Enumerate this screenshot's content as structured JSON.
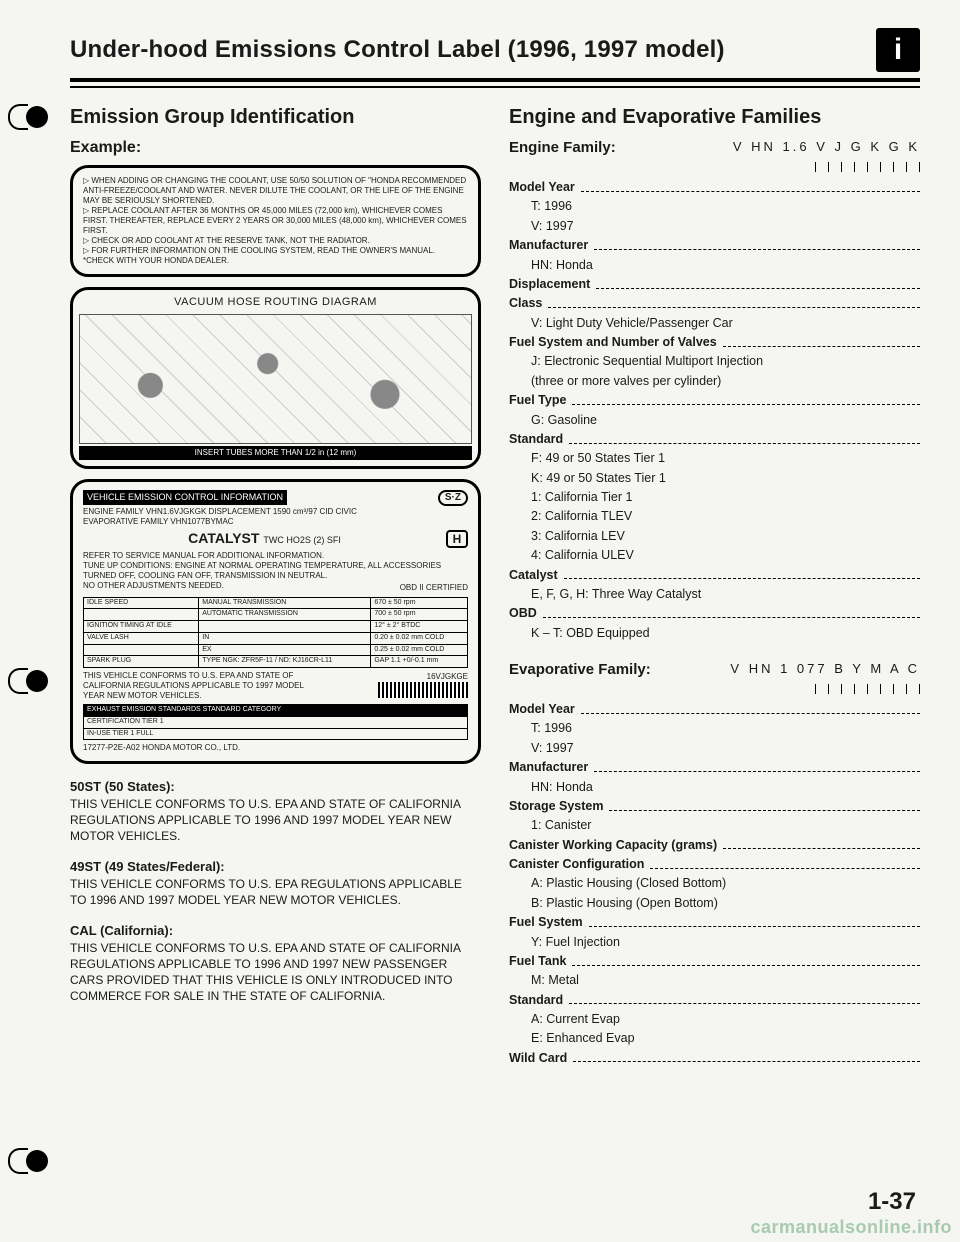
{
  "page_title": "Under-hood Emissions Control Label (1996, 1997 model)",
  "info_glyph": "i",
  "page_number": "1-37",
  "watermark": "carmanualsonline.info",
  "left": {
    "heading": "Emission Group Identification",
    "example_label": "Example:",
    "coolant_notes": [
      "▷ WHEN ADDING OR CHANGING THE COOLANT, USE 50/50 SOLUTION OF \"HONDA RECOMMENDED ANTI-FREEZE/COOLANT AND WATER. NEVER DILUTE THE COOLANT, OR THE LIFE OF THE ENGINE MAY BE SERIOUSLY SHORTENED.",
      "▷ REPLACE COOLANT AFTER 36 MONTHS OR 45,000 MILES (72,000 km), WHICHEVER COMES FIRST. THEREAFTER, REPLACE EVERY 2 YEARS OR 30,000 MILES (48,000 km), WHICHEVER COMES FIRST.",
      "▷ CHECK OR ADD COOLANT AT THE RESERVE TANK, NOT THE RADIATOR.",
      "▷ FOR FURTHER INFORMATION ON THE COOLING SYSTEM, READ THE OWNER'S MANUAL.",
      "  *CHECK WITH YOUR HONDA DEALER."
    ],
    "diagram_title": "VACUUM HOSE ROUTING DIAGRAM",
    "diagram_caption": "INSERT TUBES MORE THAN 1/2 in (12 mm)",
    "veci": {
      "header": "VEHICLE EMISSION CONTROL INFORMATION",
      "line1": "ENGINE FAMILY VHN1.6VJGKGK DISPLACEMENT 1590 cm³/97 CID   CIVIC",
      "line2": "EVAPORATIVE FAMILY VHN1077BYMAC",
      "sz": "S·Z",
      "catalyst": "CATALYST",
      "catalyst_sub": "TWC HO2S (2) SFI",
      "refer": "REFER TO SERVICE MANUAL FOR ADDITIONAL INFORMATION.",
      "tune": "TUNE UP CONDITIONS: ENGINE AT NORMAL OPERATING TEMPERATURE, ALL ACCESSORIES TURNED OFF, COOLING FAN OFF, TRANSMISSION IN NEUTRAL.",
      "no_adjust": "NO OTHER ADJUSTMENTS NEEDED.",
      "obd": "OBD II CERTIFIED",
      "h_badge": "H",
      "table_rows": [
        [
          "IDLE SPEED",
          "MANUAL TRANSMISSION",
          "670 ± 50 rpm"
        ],
        [
          "",
          "AUTOMATIC TRANSMISSION",
          "700 ± 50 rpm"
        ],
        [
          "IGNITION TIMING AT IDLE",
          "",
          "12° ± 2° BTDC"
        ],
        [
          "VALVE LASH",
          "IN",
          "0.20 ± 0.02 mm COLD"
        ],
        [
          "",
          "EX",
          "0.25 ± 0.02 mm COLD"
        ],
        [
          "SPARK PLUG",
          "TYPE   NGK: ZFR5F-11 / ND: KJ16CR-L11",
          "GAP  1.1 +0/-0.1 mm"
        ]
      ],
      "conforms": "THIS VEHICLE CONFORMS TO U.S. EPA AND STATE OF CALIFORNIA REGULATIONS APPLICABLE TO 1997 MODEL YEAR NEW MOTOR VEHICLES.",
      "engine_code": "16VJGKGE",
      "exhaust_header": "EXHAUST EMISSION STANDARDS  STANDARD CATEGORY",
      "cert": "CERTIFICATION          TIER 1",
      "inuse": "IN-USE                 TIER 1 FULL",
      "partno": "17277-P2E-A02           HONDA MOTOR CO., LTD."
    },
    "states": [
      {
        "hd": "50ST (50 States):",
        "body": "THIS VEHICLE CONFORMS TO U.S. EPA AND STATE OF CALIFORNIA REGULATIONS APPLICABLE TO 1996 AND 1997 MODEL YEAR NEW MOTOR VEHICLES."
      },
      {
        "hd": "49ST (49 States/Federal):",
        "body": "THIS VEHICLE CONFORMS TO U.S. EPA REGULATIONS APPLICABLE TO 1996 AND 1997 MODEL YEAR NEW MOTOR VEHICLES."
      },
      {
        "hd": "CAL (California):",
        "body": "THIS VEHICLE CONFORMS TO U.S. EPA AND STATE OF CALIFORNIA REGULATIONS APPLICABLE TO 1996 AND 1997 NEW PASSENGER CARS PROVIDED THAT THIS VEHICLE IS ONLY INTRODUCED INTO COMMERCE FOR SALE IN THE STATE OF CALIFORNIA."
      }
    ]
  },
  "right": {
    "heading": "Engine and Evaporative Families",
    "engine_family": {
      "label": "Engine Family:",
      "code": "V HN 1.6 V J G K G K",
      "tree": [
        {
          "k": "Model Year",
          "items": [
            "T: 1996",
            "V: 1997"
          ]
        },
        {
          "k": "Manufacturer",
          "items": [
            "HN: Honda"
          ]
        },
        {
          "k": "Displacement",
          "items": []
        },
        {
          "k": "Class",
          "items": [
            "V: Light Duty Vehicle/Passenger Car"
          ]
        },
        {
          "k": "Fuel System and Number of Valves",
          "items": [
            "J: Electronic Sequential Multiport Injection",
            "   (three or more valves per cylinder)"
          ]
        },
        {
          "k": "Fuel Type",
          "items": [
            "G: Gasoline"
          ]
        },
        {
          "k": "Standard",
          "items": [
            "F: 49 or 50 States Tier 1",
            "K: 49 or 50 States Tier 1",
            "1: California Tier 1",
            "2: California TLEV",
            "3: California LEV",
            "4: California ULEV"
          ]
        },
        {
          "k": "Catalyst",
          "items": [
            "E, F, G, H: Three Way Catalyst"
          ]
        },
        {
          "k": "OBD",
          "items": [
            "K – T: OBD Equipped"
          ]
        }
      ]
    },
    "evap_family": {
      "label": "Evaporative Family:",
      "code": "V HN 1 077 B Y M A C",
      "tree": [
        {
          "k": "Model Year",
          "items": [
            "T: 1996",
            "V: 1997"
          ]
        },
        {
          "k": "Manufacturer",
          "items": [
            "HN: Honda"
          ]
        },
        {
          "k": "Storage System",
          "items": [
            "1: Canister"
          ]
        },
        {
          "k": "Canister Working Capacity (grams)",
          "items": []
        },
        {
          "k": "Canister Configuration",
          "items": [
            "A: Plastic Housing (Closed Bottom)",
            "B: Plastic Housing (Open Bottom)"
          ]
        },
        {
          "k": "Fuel System",
          "items": [
            "Y: Fuel Injection"
          ]
        },
        {
          "k": "Fuel Tank",
          "items": [
            "M: Metal"
          ]
        },
        {
          "k": "Standard",
          "items": [
            "A: Current Evap",
            "E: Enhanced Evap"
          ]
        },
        {
          "k": "Wild Card",
          "items": []
        }
      ]
    }
  }
}
